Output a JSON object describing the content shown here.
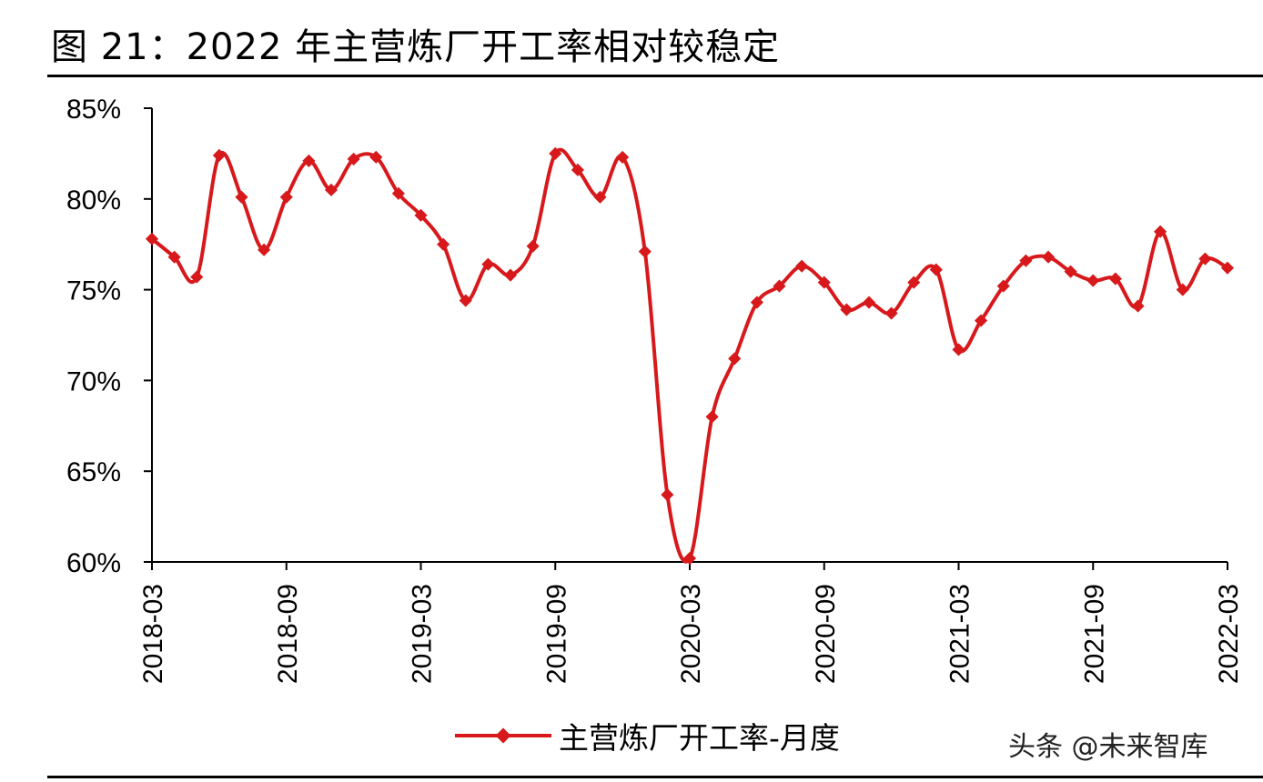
{
  "title": "图 21：2022 年主营炼厂开工率相对较稳定",
  "watermark": "头条 @未来智库",
  "colors": {
    "series": "#d7191c",
    "axis": "#000000"
  },
  "chart_data": {
    "type": "line",
    "title": "图 21：2022 年主营炼厂开工率相对较稳定",
    "xlabel": "",
    "ylabel": "",
    "ylim": [
      60,
      85
    ],
    "yticks": [
      60,
      65,
      70,
      75,
      80,
      85
    ],
    "ytick_labels": [
      "60%",
      "65%",
      "70%",
      "75%",
      "80%",
      "85%"
    ],
    "xtick_labels": [
      "2018-03",
      "2018-09",
      "2019-03",
      "2019-09",
      "2020-03",
      "2020-09",
      "2021-03",
      "2021-09",
      "2022-03"
    ],
    "grid": false,
    "legend": "bottom",
    "x": [
      "2018-03",
      "2018-04",
      "2018-05",
      "2018-06",
      "2018-07",
      "2018-08",
      "2018-09",
      "2018-10",
      "2018-11",
      "2018-12",
      "2019-01",
      "2019-02",
      "2019-03",
      "2019-04",
      "2019-05",
      "2019-06",
      "2019-07",
      "2019-08",
      "2019-09",
      "2019-10",
      "2019-11",
      "2019-12",
      "2020-01",
      "2020-02",
      "2020-03",
      "2020-04",
      "2020-05",
      "2020-06",
      "2020-07",
      "2020-08",
      "2020-09",
      "2020-10",
      "2020-11",
      "2020-12",
      "2021-01",
      "2021-02",
      "2021-03",
      "2021-04",
      "2021-05",
      "2021-06",
      "2021-07",
      "2021-08",
      "2021-09",
      "2021-10",
      "2021-11",
      "2021-12",
      "2022-01",
      "2022-02",
      "2022-03"
    ],
    "series": [
      {
        "name": "主营炼厂开工率-月度",
        "values": [
          77.8,
          76.8,
          75.7,
          82.4,
          80.1,
          77.2,
          80.1,
          82.1,
          80.5,
          82.2,
          82.3,
          80.3,
          79.1,
          77.5,
          74.4,
          76.4,
          75.8,
          77.4,
          82.5,
          81.6,
          80.1,
          82.3,
          77.1,
          63.7,
          60.2,
          68.0,
          71.2,
          74.3,
          75.2,
          76.3,
          75.4,
          73.9,
          74.3,
          73.7,
          75.4,
          76.1,
          71.7,
          73.3,
          75.2,
          76.6,
          76.8,
          76.0,
          75.5,
          75.6,
          74.1,
          78.2,
          75.0,
          76.7,
          76.2
        ]
      }
    ]
  }
}
